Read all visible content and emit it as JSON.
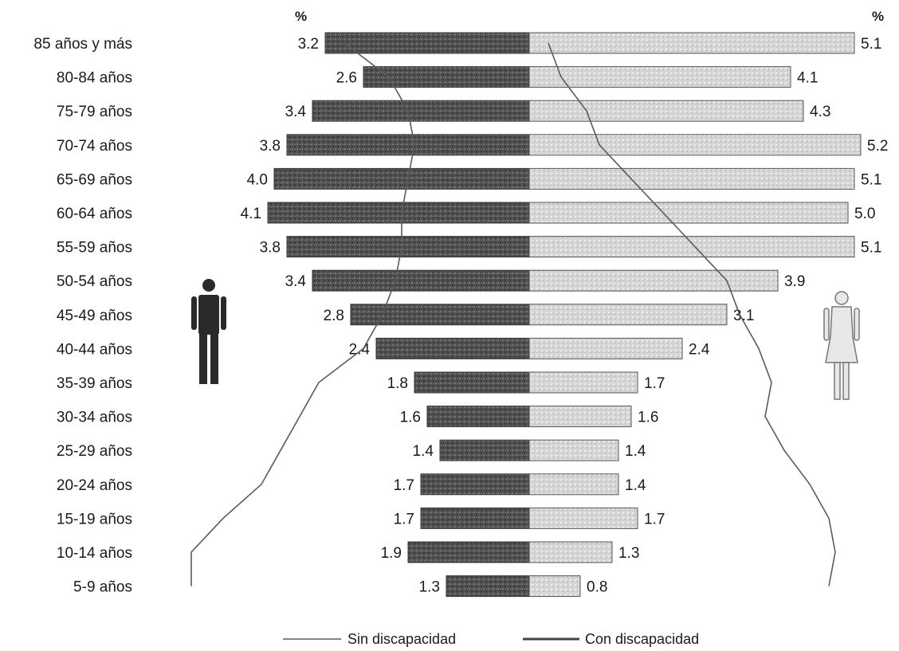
{
  "chart_data": {
    "type": "bar",
    "subtype": "population-pyramid",
    "unit_left": "%",
    "unit_right": "%",
    "categories": [
      "85 años y más",
      "80-84 años",
      "75-79 años",
      "70-74 años",
      "65-69 años",
      "60-64 años",
      "55-59 años",
      "50-54 años",
      "45-49 años",
      "40-44 años",
      "35-39 años",
      "30-34 años",
      "25-29 años",
      "20-24 años",
      "15-19 años",
      "10-14 años",
      "5-9 años"
    ],
    "series": [
      {
        "side": "left",
        "values": [
          3.2,
          2.6,
          3.4,
          3.8,
          4.0,
          4.1,
          3.8,
          3.4,
          2.8,
          2.4,
          1.8,
          1.6,
          1.4,
          1.7,
          1.7,
          1.9,
          1.3
        ]
      },
      {
        "side": "right",
        "values": [
          5.1,
          4.1,
          4.3,
          5.2,
          5.1,
          5.0,
          5.1,
          3.9,
          3.1,
          2.4,
          1.7,
          1.6,
          1.4,
          1.4,
          1.7,
          1.3,
          0.8
        ]
      }
    ],
    "value_labels_left": [
      "3.2",
      "2.6",
      "3.4",
      "3.8",
      "4.0",
      "4.1",
      "3.8",
      "3.4",
      "2.8",
      "2.4",
      "1.8",
      "1.6",
      "1.4",
      "1.7",
      "1.7",
      "1.9",
      "1.3"
    ],
    "value_labels_right": [
      "5.1",
      "4.1",
      "4.3",
      "5.2",
      "5.1",
      "5.0",
      "5.1",
      "3.9",
      "3.1",
      "2.4",
      "1.7",
      "1.6",
      "1.4",
      "1.4",
      "1.7",
      "1.3",
      "0.8"
    ],
    "overlay_lines": [
      {
        "name": "Sin discapacidad",
        "style": "thin-line",
        "left": [
          2.9,
          2.2,
          1.9,
          1.8,
          1.9,
          2.0,
          2.0,
          2.1,
          2.3,
          2.6,
          3.3,
          3.6,
          3.9,
          4.2,
          4.8,
          5.3,
          5.3
        ],
        "right": [
          0.3,
          0.5,
          0.9,
          1.1,
          1.6,
          2.1,
          2.6,
          3.1,
          3.3,
          3.6,
          3.8,
          3.7,
          4.0,
          4.4,
          4.7,
          4.8,
          4.7
        ]
      },
      {
        "name": "Con discapacidad",
        "style": "thick-line"
      }
    ],
    "icons": {
      "left": "man-icon",
      "right": "woman-icon"
    },
    "legend": {
      "position": "bottom",
      "entries": [
        "Sin discapacidad",
        "Con discapacidad"
      ]
    },
    "colors": {
      "left_bar": "#4a4a4a",
      "right_bar": "#cfcfcf",
      "right_bar_edge": "#555555",
      "line": "#5a5a5a"
    },
    "xlim_left": [
      0,
      5.5
    ],
    "xlim_right": [
      0,
      5.5
    ],
    "grid": false
  }
}
